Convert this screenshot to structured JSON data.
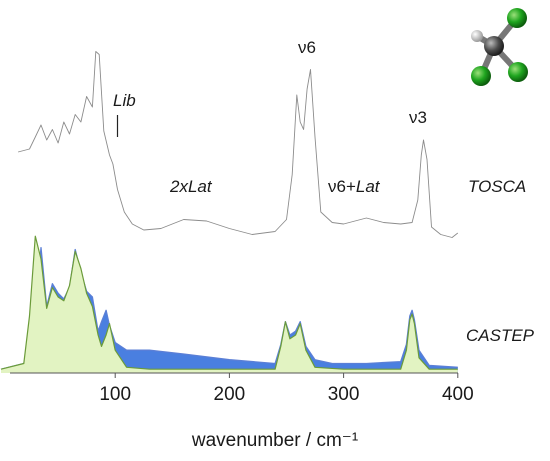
{
  "chart_data": {
    "type": "line",
    "xlabel": "wavenumber / cm⁻¹",
    "xlim": [
      0,
      400
    ],
    "x_ticks": [
      100,
      200,
      300,
      400
    ],
    "x_tick_labels": [
      "100",
      "200",
      "300",
      "400"
    ],
    "series": [
      {
        "name": "TOSCA",
        "color": "#8c8c8c",
        "x": [
          15,
          25,
          30,
          35,
          40,
          45,
          50,
          55,
          60,
          65,
          70,
          75,
          80,
          83,
          86,
          90,
          95,
          98,
          102,
          108,
          115,
          125,
          140,
          160,
          180,
          200,
          220,
          240,
          250,
          255,
          259,
          262,
          265,
          268,
          271,
          275,
          280,
          290,
          300,
          310,
          320,
          335,
          350,
          360,
          365,
          368,
          370,
          373,
          377,
          385,
          395,
          400
        ],
        "y": [
          0.6,
          0.62,
          0.7,
          0.78,
          0.68,
          0.75,
          0.66,
          0.8,
          0.72,
          0.85,
          0.8,
          0.97,
          0.9,
          1.27,
          1.25,
          0.74,
          0.58,
          0.52,
          0.35,
          0.2,
          0.12,
          0.08,
          0.09,
          0.15,
          0.14,
          0.09,
          0.05,
          0.07,
          0.15,
          0.45,
          0.98,
          0.8,
          0.75,
          1.02,
          1.15,
          0.7,
          0.2,
          0.13,
          0.12,
          0.14,
          0.16,
          0.13,
          0.12,
          0.13,
          0.28,
          0.58,
          0.68,
          0.55,
          0.1,
          0.05,
          0.03,
          0.06
        ]
      },
      {
        "name": "CASTEP",
        "color": "#5b7fd6",
        "fill": "#4a7fe0",
        "x": [
          0,
          20,
          30,
          35,
          40,
          45,
          50,
          55,
          60,
          65,
          70,
          75,
          80,
          85,
          88,
          92,
          95,
          100,
          110,
          130,
          160,
          200,
          240,
          245,
          249,
          253,
          258,
          262,
          267,
          275,
          290,
          320,
          350,
          355,
          358,
          360,
          362,
          366,
          375,
          400
        ],
        "y": [
          0.02,
          0.05,
          0.3,
          0.66,
          0.35,
          0.47,
          0.42,
          0.39,
          0.45,
          0.65,
          0.53,
          0.43,
          0.4,
          0.22,
          0.27,
          0.33,
          0.25,
          0.16,
          0.12,
          0.12,
          0.1,
          0.07,
          0.05,
          0.15,
          0.27,
          0.2,
          0.22,
          0.27,
          0.14,
          0.07,
          0.05,
          0.05,
          0.06,
          0.15,
          0.3,
          0.33,
          0.28,
          0.12,
          0.04,
          0.03
        ]
      },
      {
        "name": "",
        "color": "#6b9b3a",
        "fill": "#e2f3c2",
        "x": [
          0,
          20,
          25,
          30,
          35,
          40,
          45,
          50,
          55,
          60,
          65,
          70,
          75,
          80,
          85,
          88,
          92,
          95,
          100,
          110,
          130,
          200,
          240,
          245,
          249,
          253,
          258,
          262,
          267,
          275,
          300,
          350,
          355,
          358,
          360,
          362,
          366,
          375,
          400
        ],
        "y": [
          0.02,
          0.05,
          0.3,
          0.72,
          0.6,
          0.34,
          0.45,
          0.4,
          0.38,
          0.46,
          0.64,
          0.55,
          0.42,
          0.35,
          0.2,
          0.14,
          0.2,
          0.26,
          0.12,
          0.03,
          0.02,
          0.02,
          0.02,
          0.14,
          0.27,
          0.18,
          0.2,
          0.26,
          0.12,
          0.03,
          0.02,
          0.02,
          0.12,
          0.28,
          0.31,
          0.26,
          0.08,
          0.02,
          0.02
        ]
      }
    ],
    "annotations": [
      {
        "text": "Lib",
        "x": 97,
        "style": "italic"
      },
      {
        "text": "2xLat",
        "x": 160,
        "style": "italic"
      },
      {
        "text": "ν6",
        "x": 268,
        "style": "normal"
      },
      {
        "text": "ν6+",
        "x": 298,
        "style": "normal"
      },
      {
        "text": "Lat",
        "x": 330,
        "style": "italic"
      },
      {
        "text": "ν3",
        "x": 362,
        "style": "normal"
      }
    ],
    "series_labels": [
      "TOSCA",
      "CASTEP"
    ],
    "grid": false
  },
  "molecule_icon": "chloroform-ball-and-stick-icon",
  "colors": {
    "chlorine": "#1fa51f",
    "carbon": "#555555",
    "hydrogen": "#dddddd"
  }
}
